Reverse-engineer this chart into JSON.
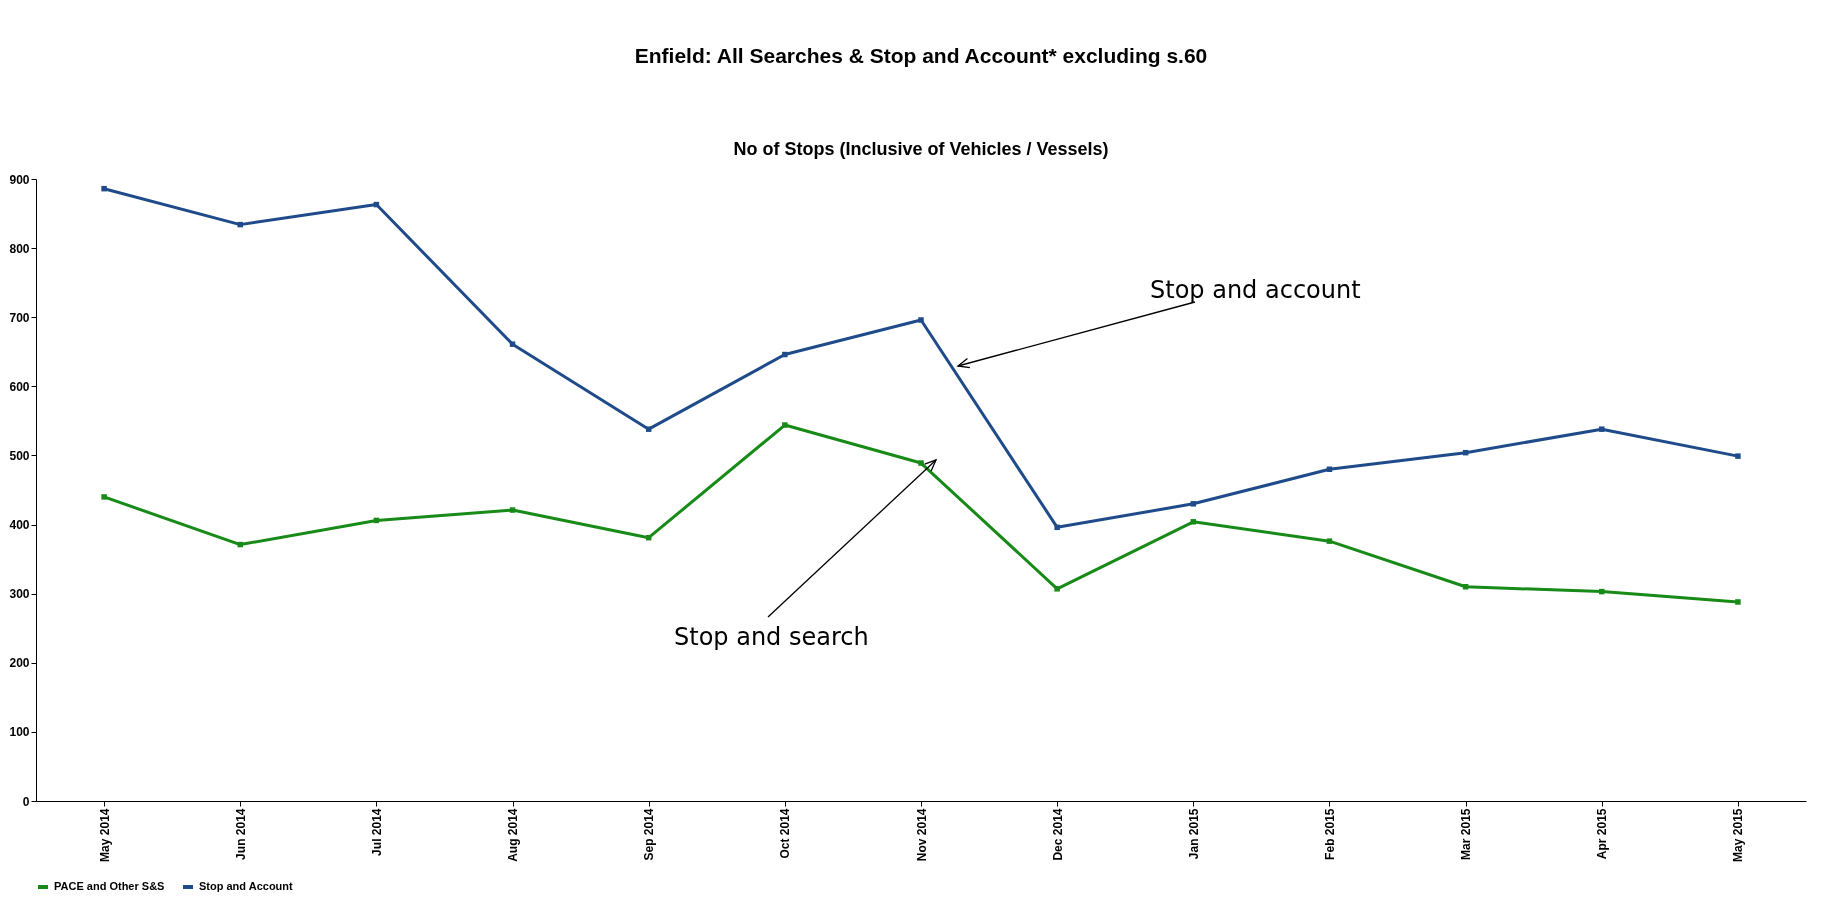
{
  "chart_data": {
    "type": "line",
    "title": "Enfield: All Searches & Stop and Account* excluding s.60",
    "subtitle": "No of Stops (Inclusive of Vehicles / Vessels)",
    "categories": [
      "May 2014",
      "Jun 2014",
      "Jul 2014",
      "Aug 2014",
      "Sep 2014",
      "Oct 2014",
      "Nov 2014",
      "Dec 2014",
      "Jan 2015",
      "Feb 2015",
      "Mar 2015",
      "Apr 2015",
      "May 2015"
    ],
    "series": [
      {
        "name": "PACE and Other S&S",
        "color": "#178a17",
        "values": [
          440,
          371,
          406,
          421,
          381,
          544,
          489,
          307,
          404,
          376,
          310,
          303,
          288
        ]
      },
      {
        "name": "Stop and Account",
        "color": "#1f4b8a",
        "values": [
          886,
          834,
          863,
          661,
          538,
          646,
          696,
          396,
          430,
          480,
          504,
          538,
          499
        ]
      }
    ],
    "ylim": [
      0,
      900
    ],
    "yticks": [
      0,
      100,
      200,
      300,
      400,
      500,
      600,
      700,
      800,
      900
    ],
    "grid": false,
    "legend": "bottom",
    "marker": "square",
    "line_style": "solid",
    "annotations": [
      "Stop and account",
      "Stop and search"
    ]
  }
}
